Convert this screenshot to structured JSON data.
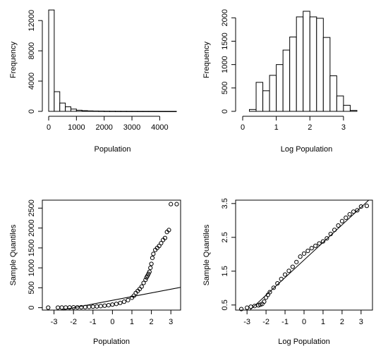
{
  "chart_data": [
    {
      "type": "bar",
      "panel": "histogram-population",
      "title": "",
      "xlabel": "Population",
      "ylabel": "Frequency",
      "xlim": [
        0,
        4600
      ],
      "ylim": [
        0,
        13600
      ],
      "xticks": [
        0,
        1000,
        2000,
        3000,
        4000
      ],
      "yticks": [
        0,
        4000,
        8000,
        12000
      ],
      "bin_width": 200,
      "bin_edges": [
        0,
        200,
        400,
        600,
        800,
        1000,
        1200,
        1400,
        1600,
        1800,
        2000,
        2200,
        2400,
        2600,
        2800,
        3000,
        3200,
        3400,
        3600,
        3800,
        4000,
        4200,
        4400,
        4600
      ],
      "values": [
        13400,
        2600,
        1100,
        600,
        300,
        150,
        90,
        60,
        40,
        30,
        20,
        15,
        10,
        8,
        6,
        5,
        4,
        3,
        3,
        2,
        2,
        1,
        1
      ]
    },
    {
      "type": "bar",
      "panel": "histogram-log-population",
      "title": "",
      "xlabel": "Log Population",
      "ylabel": "Frequency",
      "xlim": [
        0,
        3.8
      ],
      "ylim": [
        0,
        2200
      ],
      "xticks": [
        0,
        1,
        2,
        3
      ],
      "yticks": [
        0,
        500,
        1000,
        1500,
        2000
      ],
      "bin_width": 0.2,
      "bin_edges": [
        0.2,
        0.4,
        0.6,
        0.8,
        1.0,
        1.2,
        1.4,
        1.6,
        1.8,
        2.0,
        2.2,
        2.4,
        2.6,
        2.8,
        3.0,
        3.2,
        3.4,
        3.6
      ],
      "values": [
        40,
        620,
        440,
        770,
        1000,
        1310,
        1590,
        2020,
        2140,
        2020,
        1990,
        1580,
        760,
        330,
        130,
        20,
        0
      ]
    },
    {
      "type": "scatter",
      "panel": "qq-population",
      "title": "",
      "xlabel": "Population",
      "ylabel": "Sample Quantiles",
      "xlim": [
        -3.6,
        3.5
      ],
      "ylim": [
        -60,
        2700
      ],
      "xticks": [
        -3,
        -2,
        -1,
        0,
        1,
        2,
        3
      ],
      "yticks": [
        0,
        500,
        1000,
        1500,
        2000,
        2500
      ],
      "reference_line": {
        "slope": 93,
        "intercept": 185
      },
      "x": [
        -3.3,
        -2.8,
        -2.6,
        -2.4,
        -2.2,
        -2.0,
        -1.8,
        -1.6,
        -1.4,
        -1.2,
        -1.0,
        -0.8,
        -0.6,
        -0.4,
        -0.2,
        0.0,
        0.2,
        0.4,
        0.6,
        0.8,
        1.0,
        1.1,
        1.2,
        1.3,
        1.4,
        1.5,
        1.6,
        1.7,
        1.75,
        1.8,
        1.85,
        1.9,
        1.95,
        2.0,
        2.05,
        2.1,
        2.2,
        2.3,
        2.4,
        2.5,
        2.6,
        2.7,
        2.8,
        2.9,
        3.0,
        3.3
      ],
      "y": [
        2,
        3,
        4,
        5,
        6,
        8,
        10,
        12,
        15,
        20,
        25,
        32,
        40,
        50,
        62,
        78,
        95,
        120,
        150,
        190,
        250,
        300,
        370,
        420,
        470,
        530,
        620,
        700,
        760,
        800,
        850,
        900,
        1000,
        1100,
        1250,
        1350,
        1450,
        1500,
        1550,
        1620,
        1700,
        1750,
        1900,
        1950,
        2600,
        2600
      ]
    },
    {
      "type": "scatter",
      "panel": "qq-log-population",
      "title": "",
      "xlabel": "Log Population",
      "ylabel": "Sample Quantiles",
      "xlim": [
        -3.6,
        3.6
      ],
      "ylim": [
        0.35,
        3.6
      ],
      "xticks": [
        -3,
        -2,
        -1,
        0,
        1,
        2,
        3
      ],
      "yticks": [
        0.5,
        1.5,
        2.5,
        3.5
      ],
      "reference_line": {
        "slope": 0.52,
        "intercept": 1.83
      },
      "x": [
        -3.3,
        -3.0,
        -2.8,
        -2.6,
        -2.4,
        -2.3,
        -2.2,
        -2.1,
        -2.0,
        -1.9,
        -1.8,
        -1.6,
        -1.4,
        -1.2,
        -1.0,
        -0.8,
        -0.6,
        -0.4,
        -0.2,
        0.0,
        0.2,
        0.4,
        0.6,
        0.8,
        1.0,
        1.2,
        1.4,
        1.6,
        1.8,
        2.0,
        2.2,
        2.4,
        2.6,
        2.8,
        3.0,
        3.3
      ],
      "y": [
        0.38,
        0.42,
        0.45,
        0.47,
        0.49,
        0.51,
        0.53,
        0.6,
        0.72,
        0.8,
        0.88,
        1.01,
        1.14,
        1.27,
        1.4,
        1.51,
        1.63,
        1.77,
        1.93,
        2.02,
        2.1,
        2.18,
        2.25,
        2.32,
        2.38,
        2.47,
        2.6,
        2.72,
        2.85,
        2.98,
        3.08,
        3.18,
        3.26,
        3.3,
        3.41,
        3.43
      ]
    }
  ]
}
